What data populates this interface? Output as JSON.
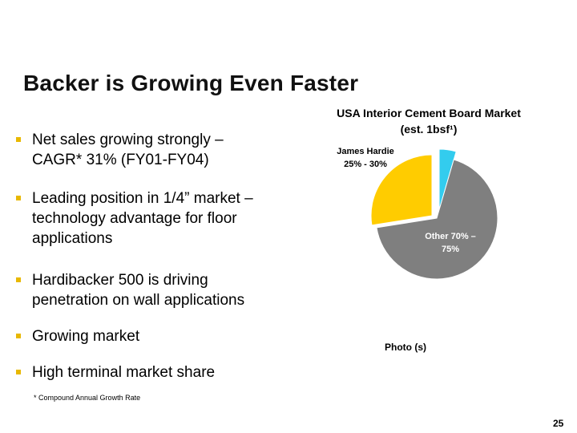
{
  "slide": {
    "title": "Backer is Growing Even Faster",
    "bullets": [
      [
        "Net sales growing strongly –",
        "CAGR* 31% (FY01-FY04)"
      ],
      [
        "Leading position in 1/4” market –",
        "technology advantage for floor",
        "applications"
      ],
      [
        "Hardibacker 500 is driving",
        "penetration on wall applications"
      ],
      [
        "Growing market"
      ],
      [
        "High terminal market share"
      ]
    ],
    "footnote": "* Compound Annual Growth Rate",
    "page_number": "25",
    "photo_label": "Photo (s)",
    "bullet_color": "#e8b800"
  },
  "chart_data": {
    "type": "pie",
    "title_lines": [
      "USA Interior Cement Board Market",
      "(est. 1bsf¹)"
    ],
    "slices": [
      {
        "label_lines": [
          "James Hardie",
          "25% - 30%"
        ],
        "value": 27.5,
        "color": "#ffcc00",
        "exploded": true
      },
      {
        "label_lines": [
          "",
          ""
        ],
        "value": 4.5,
        "color": "#33ccee",
        "exploded": true
      },
      {
        "label_lines": [
          "Other 70% –",
          "75%"
        ],
        "value": 68,
        "color": "#7f7f7f",
        "exploded": false
      }
    ]
  }
}
